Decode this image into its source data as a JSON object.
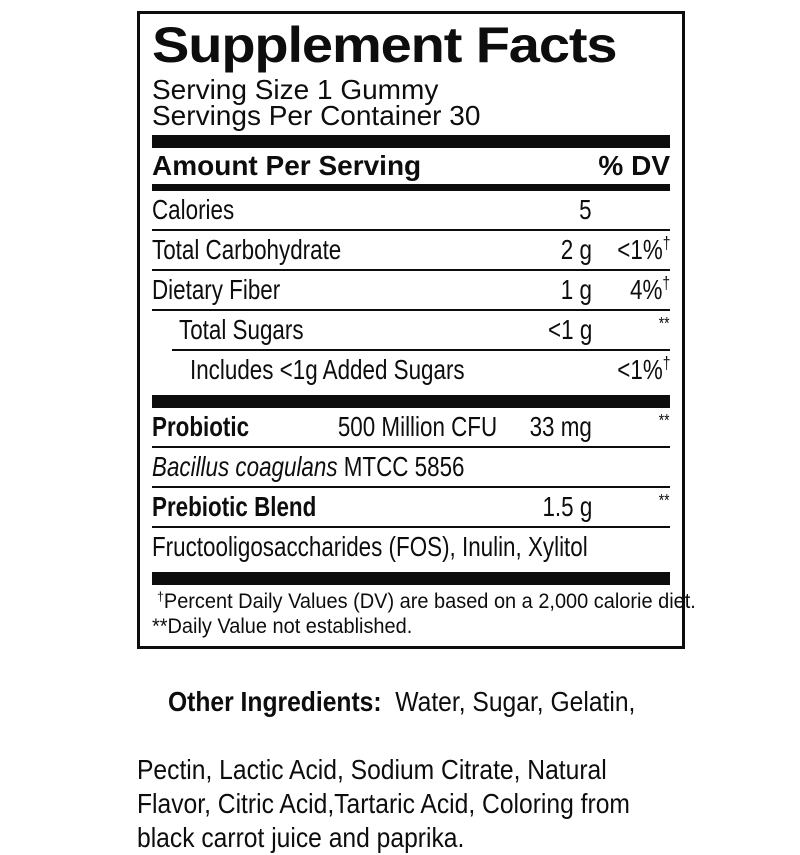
{
  "panel": {
    "title": "Supplement Facts",
    "serving_size": "Serving Size 1 Gummy",
    "servings_per_container": "Servings Per Container 30",
    "header": {
      "amount_label": "Amount Per Serving",
      "dv_label": "% DV"
    },
    "rows": {
      "calories": {
        "name": "Calories",
        "amount": "5",
        "dv": "",
        "dv_sup": ""
      },
      "total_carb": {
        "name": "Total Carbohydrate",
        "amount": "2 g",
        "dv": "<1%",
        "dv_sup": "†"
      },
      "dietary_fiber": {
        "name": "Dietary Fiber",
        "amount": "1 g",
        "dv": "4%",
        "dv_sup": "†"
      },
      "total_sugars": {
        "name": "Total Sugars",
        "amount": "<1 g",
        "dv": "",
        "dv_sup": "**"
      },
      "added_sugars": {
        "name": "Includes <1g Added Sugars",
        "amount": "",
        "dv": "<1%",
        "dv_sup": "†"
      },
      "probiotic": {
        "name": "Probiotic",
        "cfu": "500 Million CFU",
        "amount": "33 mg",
        "dv": "",
        "dv_sup": "**"
      },
      "bacillus": {
        "species": "Bacillus coagulans",
        "code": " MTCC 5856"
      },
      "prebiotic": {
        "name": "Prebiotic Blend",
        "amount": "1.5 g",
        "dv": "",
        "dv_sup": "**"
      },
      "prebiotic_ingredients": {
        "name": "Fructooligosaccharides (FOS), Inulin, Xylitol"
      }
    },
    "footnotes": {
      "dagger_symbol": "†",
      "dagger_text": "Percent Daily Values (DV) are based on a 2,000 calorie diet.",
      "asterisk_text": "**Daily Value not established."
    }
  },
  "other_ingredients": {
    "label": "Other Ingredients:",
    "line1_rest": "  Water, Sugar, Gelatin,",
    "line2": "Pectin, Lactic Acid, Sodium Citrate, Natural",
    "line3": "Flavor, Citric Acid,Tartaric Acid, Coloring from",
    "line4": "black carrot juice and paprika."
  },
  "colors": {
    "ink": "#0d0d0d",
    "background": "#ffffff"
  }
}
